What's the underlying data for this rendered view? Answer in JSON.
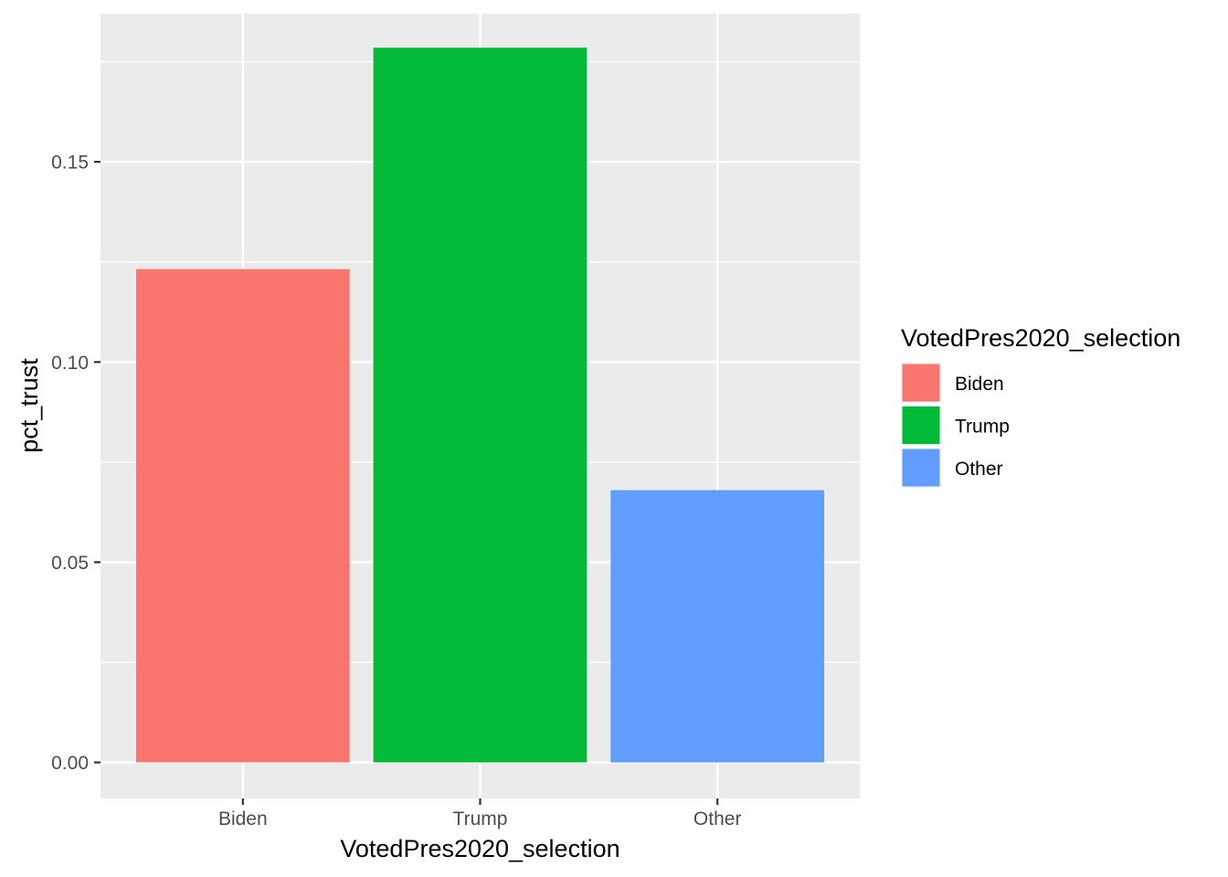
{
  "chart_data": {
    "type": "bar",
    "categories": [
      "Biden",
      "Trump",
      "Other"
    ],
    "values": [
      0.1232,
      0.1785,
      0.068
    ],
    "colors": [
      "#F8766D",
      "#00BA38",
      "#619CFF"
    ],
    "title": "",
    "xlabel": "VotedPres2020_selection",
    "ylabel": "pct_trust",
    "ylim": [
      -0.009,
      0.187
    ],
    "yticks": [
      0.0,
      0.05,
      0.1,
      0.15
    ],
    "ytick_labels": [
      "0.00",
      "0.05",
      "0.10",
      "0.15"
    ],
    "grid": true,
    "panel_background": "#EBEBEB",
    "legend": {
      "title": "VotedPres2020_selection",
      "position": "right",
      "entries": [
        "Biden",
        "Trump",
        "Other"
      ]
    }
  }
}
